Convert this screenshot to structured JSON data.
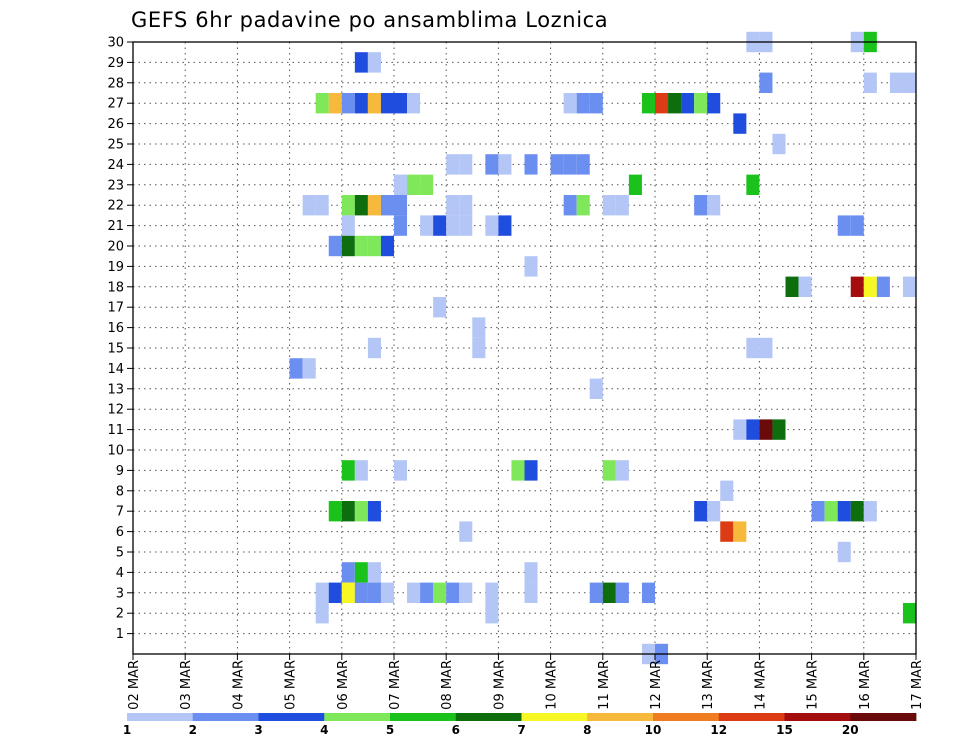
{
  "chart_data": {
    "type": "heatmap",
    "title": "GEFS 6hr padavine po ansamblima Loznica",
    "x_tick_labels": [
      "02 MAR",
      "03 MAR",
      "04 MAR",
      "05 MAR",
      "06 MAR",
      "07 MAR",
      "08 MAR",
      "09 MAR",
      "10 MAR",
      "11 MAR",
      "12 MAR",
      "13 MAR",
      "14 MAR",
      "15 MAR",
      "16 MAR",
      "17 MAR"
    ],
    "y_tick_labels": [
      "1",
      "2",
      "3",
      "4",
      "5",
      "6",
      "7",
      "8",
      "9",
      "10",
      "11",
      "12",
      "13",
      "14",
      "15",
      "16",
      "17",
      "18",
      "19",
      "20",
      "21",
      "22",
      "23",
      "24",
      "25",
      "26",
      "27",
      "28",
      "29",
      "30"
    ],
    "x_range_days": [
      0,
      15
    ],
    "y_range": [
      0,
      30
    ],
    "grid": true,
    "colorbar": {
      "labels": [
        "1",
        "2",
        "3",
        "4",
        "5",
        "6",
        "7",
        "8",
        "10",
        "12",
        "15",
        "20"
      ],
      "colors": [
        "#b4c6f5",
        "#6b8ff0",
        "#1f4ddd",
        "#7ee85a",
        "#1cc21c",
        "#0e6e0e",
        "#f7f724",
        "#f7b93b",
        "#f07d22",
        "#dc3c13",
        "#a40d0d",
        "#6a0a0a"
      ]
    },
    "cells": [
      [
        11.75,
        30,
        1
      ],
      [
        12,
        30,
        1
      ],
      [
        13.75,
        30,
        1
      ],
      [
        14,
        30,
        5
      ],
      [
        4.25,
        29,
        3
      ],
      [
        4.5,
        29,
        1
      ],
      [
        12,
        28,
        2
      ],
      [
        14,
        28,
        1
      ],
      [
        14.5,
        28,
        1
      ],
      [
        14.75,
        28,
        1
      ],
      [
        3.5,
        27,
        4
      ],
      [
        3.75,
        27,
        8
      ],
      [
        4,
        27,
        2
      ],
      [
        4.25,
        27,
        3
      ],
      [
        4.5,
        27,
        8
      ],
      [
        4.75,
        27,
        3
      ],
      [
        5,
        27,
        3
      ],
      [
        5.25,
        27,
        1
      ],
      [
        8.25,
        27,
        1
      ],
      [
        8.5,
        27,
        2
      ],
      [
        8.75,
        27,
        2
      ],
      [
        9.75,
        27,
        5
      ],
      [
        10,
        27,
        10
      ],
      [
        10.25,
        27,
        6
      ],
      [
        10.5,
        27,
        3
      ],
      [
        10.75,
        27,
        4
      ],
      [
        11,
        27,
        3
      ],
      [
        11.5,
        26,
        3
      ],
      [
        12.25,
        25,
        1
      ],
      [
        6,
        24,
        1
      ],
      [
        6.25,
        24,
        1
      ],
      [
        6.75,
        24,
        2
      ],
      [
        7,
        24,
        1
      ],
      [
        7.5,
        24,
        2
      ],
      [
        8,
        24,
        2
      ],
      [
        8.25,
        24,
        2
      ],
      [
        8.5,
        24,
        2
      ],
      [
        5,
        23,
        1
      ],
      [
        5.25,
        23,
        4
      ],
      [
        5.5,
        23,
        4
      ],
      [
        9.5,
        23,
        5
      ],
      [
        11.75,
        23,
        5
      ],
      [
        3.25,
        22,
        1
      ],
      [
        3.5,
        22,
        1
      ],
      [
        4,
        22,
        4
      ],
      [
        4.25,
        22,
        6
      ],
      [
        4.5,
        22,
        8
      ],
      [
        4.75,
        22,
        2
      ],
      [
        5,
        22,
        2
      ],
      [
        6,
        22,
        1
      ],
      [
        6.25,
        22,
        1
      ],
      [
        8.25,
        22,
        2
      ],
      [
        8.5,
        22,
        4
      ],
      [
        9,
        22,
        1
      ],
      [
        9.25,
        22,
        1
      ],
      [
        10.75,
        22,
        2
      ],
      [
        11,
        22,
        1
      ],
      [
        4,
        21,
        1
      ],
      [
        5,
        21,
        2
      ],
      [
        5.5,
        21,
        1
      ],
      [
        5.75,
        21,
        3
      ],
      [
        6,
        21,
        1
      ],
      [
        6.25,
        21,
        1
      ],
      [
        6.75,
        21,
        1
      ],
      [
        7,
        21,
        3
      ],
      [
        13.5,
        21,
        2
      ],
      [
        13.75,
        21,
        2
      ],
      [
        3.75,
        20,
        2
      ],
      [
        4,
        20,
        6
      ],
      [
        4.25,
        20,
        4
      ],
      [
        4.5,
        20,
        4
      ],
      [
        4.75,
        20,
        3
      ],
      [
        7.5,
        19,
        1
      ],
      [
        12.5,
        18,
        6
      ],
      [
        12.75,
        18,
        1
      ],
      [
        13.75,
        18,
        11
      ],
      [
        14,
        18,
        7
      ],
      [
        14.25,
        18,
        2
      ],
      [
        14.75,
        18,
        1
      ],
      [
        5.75,
        17,
        1
      ],
      [
        6.5,
        16,
        1
      ],
      [
        4.5,
        15,
        1
      ],
      [
        6.5,
        15,
        1
      ],
      [
        11.75,
        15,
        1
      ],
      [
        12,
        15,
        1
      ],
      [
        3,
        14,
        2
      ],
      [
        3.25,
        14,
        1
      ],
      [
        8.75,
        13,
        1
      ],
      [
        11.5,
        11,
        1
      ],
      [
        11.75,
        11,
        3
      ],
      [
        12,
        11,
        12
      ],
      [
        12.25,
        11,
        6
      ],
      [
        4,
        9,
        5
      ],
      [
        4.25,
        9,
        1
      ],
      [
        5,
        9,
        1
      ],
      [
        7.25,
        9,
        4
      ],
      [
        7.5,
        9,
        3
      ],
      [
        9,
        9,
        4
      ],
      [
        9.25,
        9,
        1
      ],
      [
        11.25,
        8,
        1
      ],
      [
        3.75,
        7,
        5
      ],
      [
        4,
        7,
        6
      ],
      [
        4.25,
        7,
        4
      ],
      [
        4.5,
        7,
        3
      ],
      [
        10.75,
        7,
        3
      ],
      [
        11,
        7,
        1
      ],
      [
        13,
        7,
        2
      ],
      [
        13.25,
        7,
        4
      ],
      [
        13.5,
        7,
        3
      ],
      [
        13.75,
        7,
        6
      ],
      [
        14,
        7,
        1
      ],
      [
        6.25,
        6,
        1
      ],
      [
        11.25,
        6,
        10
      ],
      [
        11.5,
        6,
        8
      ],
      [
        13.5,
        5,
        1
      ],
      [
        4,
        4,
        2
      ],
      [
        4.25,
        4,
        5
      ],
      [
        4.5,
        4,
        1
      ],
      [
        7.5,
        4,
        1
      ],
      [
        3.5,
        3,
        1
      ],
      [
        3.75,
        3,
        3
      ],
      [
        4,
        3,
        7
      ],
      [
        4.25,
        3,
        2
      ],
      [
        4.5,
        3,
        2
      ],
      [
        4.75,
        3,
        1
      ],
      [
        5.25,
        3,
        1
      ],
      [
        5.5,
        3,
        2
      ],
      [
        5.75,
        3,
        4
      ],
      [
        6,
        3,
        2
      ],
      [
        6.25,
        3,
        1
      ],
      [
        6.75,
        3,
        1
      ],
      [
        7.5,
        3,
        1
      ],
      [
        8.75,
        3,
        2
      ],
      [
        9,
        3,
        6
      ],
      [
        9.25,
        3,
        2
      ],
      [
        9.75,
        3,
        2
      ],
      [
        3.5,
        2,
        1
      ],
      [
        6.75,
        2,
        1
      ],
      [
        14.75,
        2,
        5
      ],
      [
        9.75,
        0,
        1
      ],
      [
        10,
        0,
        2
      ]
    ]
  }
}
